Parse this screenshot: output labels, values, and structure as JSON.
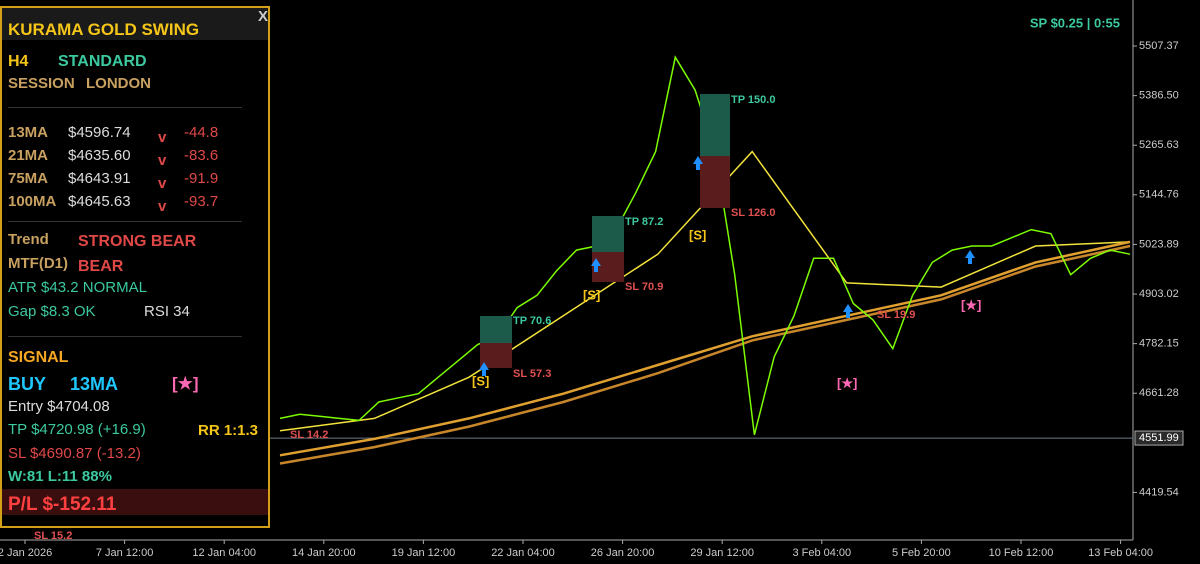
{
  "panel": {
    "title": "KURAMA GOLD SWING",
    "close": "X",
    "timeframe": "H4",
    "mode": "STANDARD",
    "session_label": "SESSION",
    "session": "LONDON",
    "mas": [
      {
        "name": "13MA",
        "price": "$4596.74",
        "dir": "v",
        "change": "-44.8"
      },
      {
        "name": "21MA",
        "price": "$4635.60",
        "dir": "v",
        "change": "-83.6"
      },
      {
        "name": "75MA",
        "price": "$4643.91",
        "dir": "v",
        "change": "-91.9"
      },
      {
        "name": "100MA",
        "price": "$4645.63",
        "dir": "v",
        "change": "-93.7"
      }
    ],
    "trend_label": "Trend",
    "trend": "STRONG BEAR",
    "mtf_label": "MTF(D1)",
    "mtf": "BEAR",
    "atr": "ATR  $43.2  NORMAL",
    "gap": "Gap $8.3 OK",
    "rsi": "RSI 34",
    "signal_label": "SIGNAL",
    "signal": "BUY",
    "signal_ma": "13MA",
    "signal_star": "[★]",
    "entry": "Entry  $4704.08",
    "tp": "TP  $4720.98  (+16.9)",
    "rr": "RR 1:1.3",
    "sl": "SL  $4690.87  (-13.2)",
    "stats": "W:81 L:11  88%",
    "pl": "P/L  $-152.11"
  },
  "chart": {
    "spread": "SP $0.25  |  0:55",
    "ylim": [
      4303.6,
      5619.5
    ],
    "yticks": [
      {
        "value": 5507.37,
        "label": "5507.37"
      },
      {
        "value": 5386.5,
        "label": "5386.50"
      },
      {
        "value": 5265.63,
        "label": "5265.63"
      },
      {
        "value": 5144.76,
        "label": "5144.76"
      },
      {
        "value": 5023.89,
        "label": "5023.89"
      },
      {
        "value": 4903.02,
        "label": "4903.02"
      },
      {
        "value": 4782.15,
        "label": "4782.15"
      },
      {
        "value": 4661.28,
        "label": "4661.28"
      },
      {
        "value": 4419.54,
        "label": "4419.54"
      }
    ],
    "current_price": 4551.99,
    "categories": [
      "2 Jan 2026",
      "7 Jan 12:00",
      "12 Jan 04:00",
      "14 Jan 20:00",
      "19 Jan 12:00",
      "22 Jan 04:00",
      "26 Jan 20:00",
      "29 Jan 12:00",
      "3 Feb 04:00",
      "5 Feb 20:00",
      "10 Feb 12:00",
      "13 Feb 04:00"
    ],
    "price": {
      "color": "#7cfc00",
      "values": [
        4600,
        4610,
        4605,
        4600,
        4595,
        4640,
        4650,
        4660,
        4700,
        4740,
        4780,
        4800,
        4870,
        4900,
        4960,
        5010,
        5020,
        5060,
        5150,
        5250,
        5480,
        5400,
        5250,
        4950,
        4560,
        4750,
        4850,
        4990,
        4990,
        4880,
        4840,
        4770,
        4900,
        4980,
        5010,
        5020,
        5020,
        5040,
        5060,
        5050,
        4950,
        4990,
        5010,
        5000
      ]
    },
    "ma_lines": [
      {
        "color": "#f2e33a",
        "values": [
          4570,
          4600,
          4700,
          4850,
          5000,
          5250,
          4930,
          4920,
          5020,
          5030
        ]
      },
      {
        "color": "#e0a030",
        "values": [
          4510,
          4550,
          4600,
          4660,
          4730,
          4800,
          4850,
          4900,
          4980,
          5030
        ]
      },
      {
        "color": "#c8862a",
        "values": [
          4490,
          4530,
          4580,
          4640,
          4710,
          4790,
          4840,
          4890,
          4970,
          5020
        ]
      }
    ],
    "annotations": {
      "tp1": "TP 70.6",
      "sl1": "SL 57.3",
      "s1": "[S]",
      "tp2": "TP 87.2",
      "sl2": "SL 70.9",
      "s2": "[S]",
      "tp3": "TP 150.0",
      "sl3": "SL 126.0",
      "s3": "[S]",
      "star1": "[★]",
      "sl4": "SL 19.9",
      "star2": "[★]",
      "sl5": "SL 14.2",
      "sl6": "SL 15.2"
    }
  }
}
